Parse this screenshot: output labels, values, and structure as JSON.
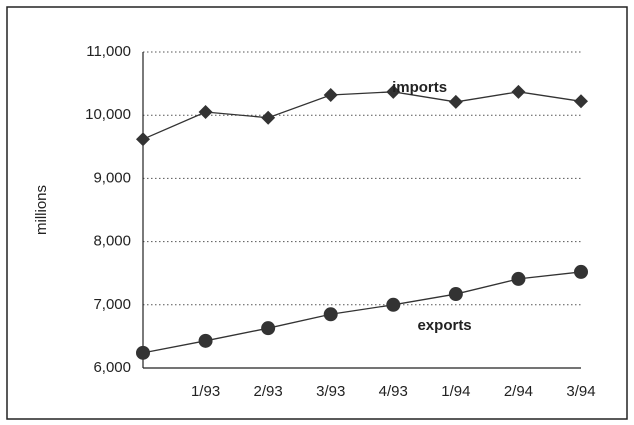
{
  "chart_data": {
    "type": "line",
    "y_label": "millions",
    "categories": [
      null,
      "1/93",
      "2/93",
      "3/93",
      "4/93",
      "1/94",
      "2/94",
      "3/94"
    ],
    "series": [
      {
        "name": "imports",
        "color": "#333333",
        "marker": "diamond",
        "values": [
          9620,
          10050,
          9960,
          10320,
          10370,
          10210,
          10370,
          10220
        ]
      },
      {
        "name": "exports",
        "color": "#333333",
        "marker": "circle",
        "values": [
          6240,
          6430,
          6630,
          6850,
          7000,
          7170,
          7410,
          7520
        ]
      }
    ],
    "ylim": [
      6000,
      11000
    ],
    "yticks": [
      {
        "value": 6000,
        "label": "6,000"
      },
      {
        "value": 7000,
        "label": "7,000"
      },
      {
        "value": 8000,
        "label": "8,000"
      },
      {
        "value": 9000,
        "label": "9,000"
      },
      {
        "value": 10000,
        "label": "10,000"
      },
      {
        "value": 11000,
        "label": "11,000"
      }
    ],
    "grid": true
  }
}
